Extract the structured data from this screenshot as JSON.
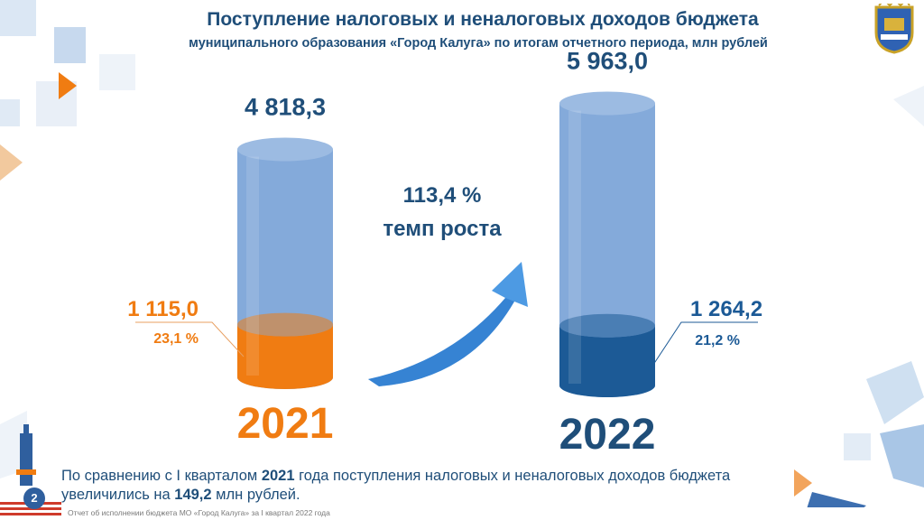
{
  "header": {
    "title": "Поступление налоговых и неналоговых доходов бюджета",
    "subtitle": "муниципального образования «Город Калуга» по итогам отчетного периода, млн рублей"
  },
  "logo": {
    "name": "kaluga-coat-of-arms-icon"
  },
  "chart_data": {
    "type": "bar",
    "categories": [
      "2021",
      "2022"
    ],
    "series": [
      {
        "values": [
          4818.3,
          5963.0
        ]
      },
      {
        "values": [
          1115.0,
          1264.2
        ]
      }
    ],
    "total_labels": [
      "4 818,3",
      "5 963,0"
    ],
    "part_labels": [
      "1 115,0",
      "1 264,2"
    ],
    "part_percent_labels": [
      "23,1 %",
      "21,2 %"
    ],
    "year_labels": [
      "2021",
      "2022"
    ],
    "colors": {
      "total_2021": "#6f9bd3",
      "total_2022": "#6f9bd3",
      "part_2021": "#f07c12",
      "part_2022": "#1c5a96",
      "year_2021": "#f07c12",
      "year_2022": "#1f4e79",
      "arrow": "#3a8fe0"
    }
  },
  "growth": {
    "value": "113,4 %",
    "label": "темп роста"
  },
  "comment": {
    "part1": "По сравнению с I кварталом ",
    "year": "2021",
    "part2": " года поступления налоговых и неналоговых доходов бюджета увеличились на ",
    "amount": "149,2",
    "part3": " млн рублей."
  },
  "footer": {
    "note": "Отчет об исполнении бюджета МО «Город Калуга» за I квартал 2022 года",
    "page_number": "2"
  }
}
